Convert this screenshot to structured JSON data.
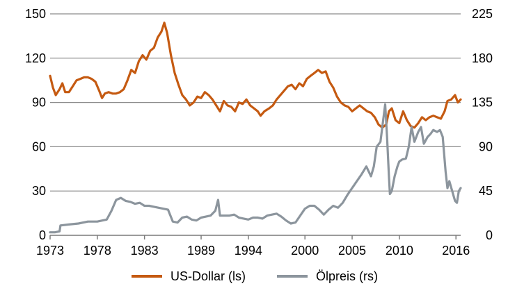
{
  "chart_data": {
    "type": "line",
    "title": "",
    "xlabel": "",
    "ylabel_left": "",
    "ylabel_right": "",
    "x_range": [
      1973,
      2016.5
    ],
    "x_ticks": [
      1973,
      1978,
      1983,
      1989,
      1994,
      2000,
      2005,
      2010,
      2016
    ],
    "left_axis": {
      "range": [
        0,
        150
      ],
      "ticks": [
        0,
        30,
        60,
        90,
        120,
        150
      ]
    },
    "right_axis": {
      "range": [
        0,
        225
      ],
      "ticks": [
        0,
        45,
        90,
        135,
        180,
        225
      ]
    },
    "grid": "horizontal",
    "legend_position": "bottom",
    "series": [
      {
        "name": "US-Dollar (ls)",
        "axis": "left",
        "color": "#C55A11",
        "points": [
          [
            1973.0,
            108
          ],
          [
            1973.3,
            100
          ],
          [
            1973.6,
            95
          ],
          [
            1974.0,
            99
          ],
          [
            1974.3,
            103
          ],
          [
            1974.6,
            97
          ],
          [
            1975.0,
            97
          ],
          [
            1975.4,
            101
          ],
          [
            1975.8,
            105
          ],
          [
            1976.2,
            106
          ],
          [
            1976.6,
            107
          ],
          [
            1977.0,
            107
          ],
          [
            1977.4,
            106
          ],
          [
            1977.8,
            104
          ],
          [
            1978.2,
            98
          ],
          [
            1978.5,
            93
          ],
          [
            1978.8,
            96
          ],
          [
            1979.2,
            97
          ],
          [
            1979.6,
            96
          ],
          [
            1980.0,
            96
          ],
          [
            1980.4,
            97
          ],
          [
            1980.8,
            99
          ],
          [
            1981.2,
            105
          ],
          [
            1981.6,
            112
          ],
          [
            1982.0,
            110
          ],
          [
            1982.4,
            118
          ],
          [
            1982.8,
            122
          ],
          [
            1983.2,
            119
          ],
          [
            1983.6,
            125
          ],
          [
            1984.0,
            127
          ],
          [
            1984.4,
            134
          ],
          [
            1984.8,
            138
          ],
          [
            1985.1,
            144
          ],
          [
            1985.4,
            137
          ],
          [
            1985.8,
            122
          ],
          [
            1986.2,
            110
          ],
          [
            1986.6,
            102
          ],
          [
            1987.0,
            95
          ],
          [
            1987.4,
            92
          ],
          [
            1987.8,
            88
          ],
          [
            1988.2,
            90
          ],
          [
            1988.6,
            94
          ],
          [
            1989.0,
            93
          ],
          [
            1989.4,
            97
          ],
          [
            1989.8,
            95
          ],
          [
            1990.2,
            92
          ],
          [
            1990.6,
            88
          ],
          [
            1991.0,
            84
          ],
          [
            1991.4,
            91
          ],
          [
            1991.8,
            88
          ],
          [
            1992.2,
            87
          ],
          [
            1992.6,
            84
          ],
          [
            1993.0,
            90
          ],
          [
            1993.4,
            89
          ],
          [
            1993.8,
            92
          ],
          [
            1994.2,
            88
          ],
          [
            1994.6,
            86
          ],
          [
            1995.0,
            84
          ],
          [
            1995.3,
            81
          ],
          [
            1995.7,
            84
          ],
          [
            1996.2,
            86
          ],
          [
            1996.6,
            88
          ],
          [
            1997.0,
            92
          ],
          [
            1997.4,
            95
          ],
          [
            1997.8,
            98
          ],
          [
            1998.2,
            101
          ],
          [
            1998.6,
            102
          ],
          [
            1999.0,
            99
          ],
          [
            1999.4,
            103
          ],
          [
            1999.8,
            101
          ],
          [
            2000.2,
            106
          ],
          [
            2000.6,
            108
          ],
          [
            2001.0,
            110
          ],
          [
            2001.4,
            112
          ],
          [
            2001.8,
            110
          ],
          [
            2002.2,
            111
          ],
          [
            2002.6,
            104
          ],
          [
            2003.0,
            100
          ],
          [
            2003.4,
            94
          ],
          [
            2003.8,
            90
          ],
          [
            2004.2,
            88
          ],
          [
            2004.6,
            87
          ],
          [
            2005.0,
            84
          ],
          [
            2005.4,
            86
          ],
          [
            2005.8,
            88
          ],
          [
            2006.2,
            86
          ],
          [
            2006.6,
            84
          ],
          [
            2007.0,
            83
          ],
          [
            2007.4,
            80
          ],
          [
            2007.8,
            75
          ],
          [
            2008.2,
            73
          ],
          [
            2008.6,
            75
          ],
          [
            2008.9,
            84
          ],
          [
            2009.2,
            86
          ],
          [
            2009.6,
            78
          ],
          [
            2010.0,
            76
          ],
          [
            2010.4,
            84
          ],
          [
            2010.8,
            78
          ],
          [
            2011.2,
            74
          ],
          [
            2011.6,
            73
          ],
          [
            2012.0,
            76
          ],
          [
            2012.4,
            80
          ],
          [
            2012.8,
            78
          ],
          [
            2013.2,
            80
          ],
          [
            2013.6,
            81
          ],
          [
            2014.0,
            80
          ],
          [
            2014.4,
            79
          ],
          [
            2014.8,
            84
          ],
          [
            2015.1,
            91
          ],
          [
            2015.5,
            92
          ],
          [
            2015.9,
            95
          ],
          [
            2016.2,
            90
          ],
          [
            2016.5,
            92
          ]
        ]
      },
      {
        "name": "Ölpreis (rs)",
        "axis": "right",
        "color": "#8C959D",
        "points": [
          [
            1973.0,
            3
          ],
          [
            1973.5,
            3
          ],
          [
            1974.0,
            4
          ],
          [
            1974.1,
            10
          ],
          [
            1975.0,
            11
          ],
          [
            1976.0,
            12
          ],
          [
            1977.0,
            14
          ],
          [
            1978.0,
            14
          ],
          [
            1979.0,
            16
          ],
          [
            1979.5,
            25
          ],
          [
            1980.0,
            36
          ],
          [
            1980.5,
            38
          ],
          [
            1981.0,
            35
          ],
          [
            1981.5,
            34
          ],
          [
            1982.0,
            32
          ],
          [
            1982.5,
            33
          ],
          [
            1983.0,
            30
          ],
          [
            1983.5,
            30
          ],
          [
            1984.0,
            29
          ],
          [
            1984.5,
            28
          ],
          [
            1985.0,
            27
          ],
          [
            1985.5,
            26
          ],
          [
            1986.0,
            14
          ],
          [
            1986.5,
            13
          ],
          [
            1987.0,
            18
          ],
          [
            1987.5,
            19
          ],
          [
            1988.0,
            16
          ],
          [
            1988.5,
            15
          ],
          [
            1989.0,
            18
          ],
          [
            1989.5,
            19
          ],
          [
            1990.0,
            20
          ],
          [
            1990.5,
            25
          ],
          [
            1990.8,
            36
          ],
          [
            1991.0,
            20
          ],
          [
            1991.5,
            20
          ],
          [
            1992.0,
            20
          ],
          [
            1992.5,
            21
          ],
          [
            1993.0,
            18
          ],
          [
            1993.5,
            17
          ],
          [
            1994.0,
            16
          ],
          [
            1994.5,
            18
          ],
          [
            1995.0,
            18
          ],
          [
            1995.5,
            17
          ],
          [
            1996.0,
            20
          ],
          [
            1996.5,
            21
          ],
          [
            1997.0,
            22
          ],
          [
            1997.5,
            19
          ],
          [
            1998.0,
            15
          ],
          [
            1998.5,
            12
          ],
          [
            1999.0,
            13
          ],
          [
            1999.5,
            20
          ],
          [
            2000.0,
            27
          ],
          [
            2000.5,
            30
          ],
          [
            2001.0,
            30
          ],
          [
            2001.5,
            26
          ],
          [
            2002.0,
            21
          ],
          [
            2002.5,
            26
          ],
          [
            2003.0,
            30
          ],
          [
            2003.5,
            28
          ],
          [
            2004.0,
            33
          ],
          [
            2004.5,
            41
          ],
          [
            2005.0,
            48
          ],
          [
            2005.5,
            55
          ],
          [
            2006.0,
            62
          ],
          [
            2006.5,
            70
          ],
          [
            2007.0,
            60
          ],
          [
            2007.3,
            70
          ],
          [
            2007.6,
            90
          ],
          [
            2008.0,
            95
          ],
          [
            2008.3,
            118
          ],
          [
            2008.5,
            133
          ],
          [
            2008.7,
            100
          ],
          [
            2008.9,
            60
          ],
          [
            2009.0,
            42
          ],
          [
            2009.2,
            45
          ],
          [
            2009.5,
            60
          ],
          [
            2009.8,
            70
          ],
          [
            2010.0,
            75
          ],
          [
            2010.3,
            77
          ],
          [
            2010.7,
            78
          ],
          [
            2011.0,
            90
          ],
          [
            2011.3,
            110
          ],
          [
            2011.6,
            95
          ],
          [
            2012.0,
            105
          ],
          [
            2012.3,
            110
          ],
          [
            2012.6,
            93
          ],
          [
            2013.0,
            100
          ],
          [
            2013.3,
            103
          ],
          [
            2013.6,
            107
          ],
          [
            2014.0,
            105
          ],
          [
            2014.3,
            107
          ],
          [
            2014.6,
            100
          ],
          [
            2014.9,
            65
          ],
          [
            2015.1,
            48
          ],
          [
            2015.3,
            55
          ],
          [
            2015.6,
            45
          ],
          [
            2015.9,
            35
          ],
          [
            2016.1,
            33
          ],
          [
            2016.3,
            45
          ],
          [
            2016.5,
            48
          ]
        ]
      }
    ]
  }
}
